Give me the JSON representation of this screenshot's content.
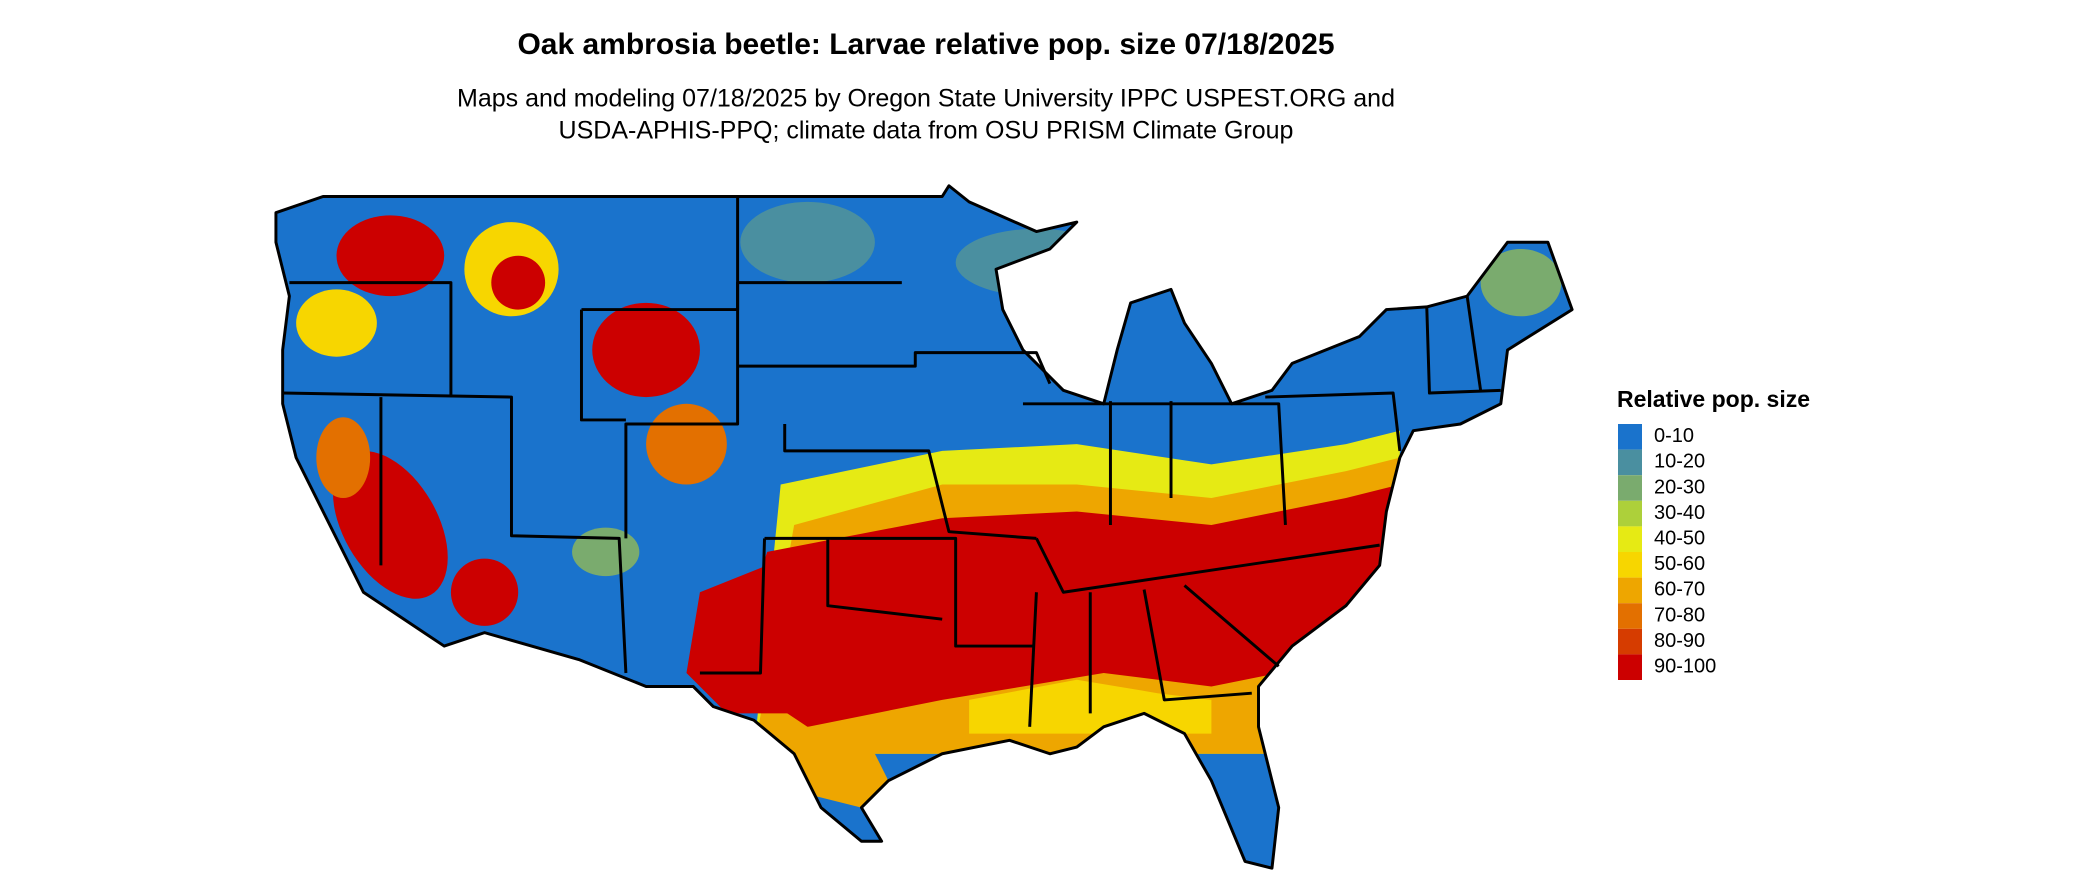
{
  "map": {
    "title": "Oak ambrosia beetle: Larvae relative pop. size 07/18/2025",
    "subtitle": [
      "Maps and modeling 07/18/2025 by Oregon State University IPPC USPEST.ORG and",
      "USDA-APHIS-PPQ; climate data from OSU PRISM Climate Group"
    ],
    "legend": {
      "title": "Relative pop. size",
      "items": [
        {
          "label": "0-10",
          "color": "#1a73cc"
        },
        {
          "label": "10-20",
          "color": "#4a8fa0"
        },
        {
          "label": "20-30",
          "color": "#7aab6e"
        },
        {
          "label": "30-40",
          "color": "#add03a"
        },
        {
          "label": "40-50",
          "color": "#e6ea14"
        },
        {
          "label": "50-60",
          "color": "#f7d600"
        },
        {
          "label": "60-70",
          "color": "#eea600"
        },
        {
          "label": "70-80",
          "color": "#e37000"
        },
        {
          "label": "80-90",
          "color": "#d63c00"
        },
        {
          "label": "90-100",
          "color": "#cc0000"
        }
      ]
    }
  }
}
